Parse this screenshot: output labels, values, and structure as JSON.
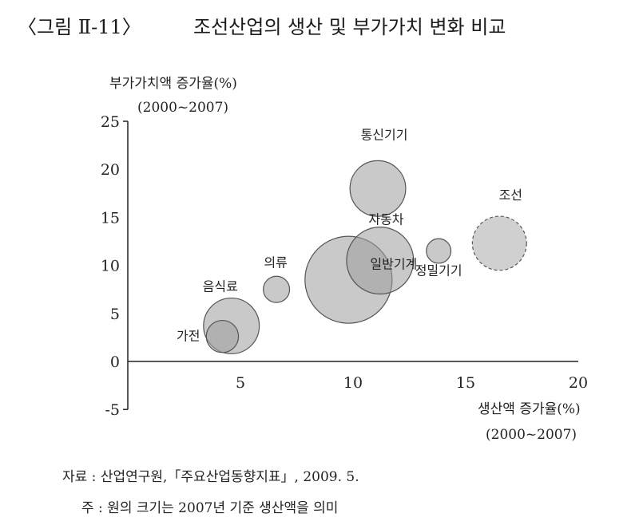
{
  "figure": {
    "number": "〈그림 Ⅱ-11〉",
    "title": "조선산업의 생산 및 부가가치 변화 비교"
  },
  "chart_data": {
    "type": "bubble",
    "ylabel": "부가가치액 증가율(%)",
    "ylabel_period": "(2000~2007)",
    "xlabel": "생산액 증가율(%)",
    "xlabel_period": "(2000~2007)",
    "xlim": [
      0,
      20
    ],
    "ylim": [
      -5,
      25
    ],
    "xticks": [
      5,
      10,
      15,
      20
    ],
    "yticks": [
      25,
      20,
      15,
      10,
      5,
      0,
      -5
    ],
    "series": [
      {
        "name": "자동차",
        "x": 9.8,
        "y": 8.5,
        "size": 4.4,
        "dashed": false
      },
      {
        "name": "일반기계",
        "x": 11.2,
        "y": 10.5,
        "size": 2.6,
        "dashed": false
      },
      {
        "name": "통신기기",
        "x": 11.1,
        "y": 18.0,
        "size": 1.8,
        "dashed": false
      },
      {
        "name": "조선",
        "x": 16.5,
        "y": 12.3,
        "size": 1.7,
        "dashed": true
      },
      {
        "name": "정밀기기",
        "x": 13.8,
        "y": 11.5,
        "size": 0.35,
        "dashed": false
      },
      {
        "name": "음식료",
        "x": 4.6,
        "y": 3.7,
        "size": 1.8,
        "dashed": false
      },
      {
        "name": "가전",
        "x": 4.2,
        "y": 2.6,
        "size": 0.6,
        "dashed": false
      },
      {
        "name": "의류",
        "x": 6.6,
        "y": 7.5,
        "size": 0.4,
        "dashed": false
      }
    ]
  },
  "footnotes": {
    "source": "자료 : 산업연구원,「주요산업동향지표」, 2009. 5.",
    "note": "주 : 원의 크기는 2007년 기준 생산액을 의미"
  }
}
